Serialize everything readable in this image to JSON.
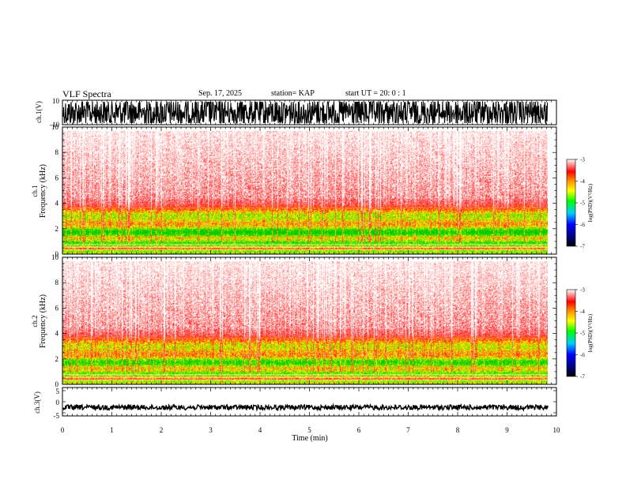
{
  "header": {
    "title": "VLF Spectra",
    "date": "Sep. 17, 2025",
    "station": "station= KAP",
    "start": "start UT =   20: 0  : 1"
  },
  "chart_data": [
    {
      "type": "line",
      "name": "ch1-waveform",
      "ylabel": "ch.1(V)",
      "ylim": [
        -10,
        10
      ],
      "yticks": [
        "10",
        "-10"
      ],
      "x_range_min": [
        0,
        9.83
      ]
    },
    {
      "type": "heatmap",
      "name": "ch1-spectrogram",
      "ylabel": "ch.1\nFrequency (kHz)",
      "ylim": [
        0,
        10
      ],
      "yticks": [
        "10",
        "8",
        "6",
        "4",
        "2",
        "0"
      ],
      "colorbar": {
        "label": "log(PSD)(V²/Hz)",
        "range": [
          -7,
          -3
        ],
        "ticks": [
          "-3",
          "-4",
          "-5",
          "-6",
          "-7"
        ]
      }
    },
    {
      "type": "heatmap",
      "name": "ch2-spectrogram",
      "ylabel": "ch.2\nFrequency (kHz)",
      "ylim": [
        0,
        10
      ],
      "yticks": [
        "10",
        "8",
        "6",
        "4",
        "2",
        "0"
      ],
      "colorbar": {
        "label": "log(PSD)(V²/Hz)",
        "range": [
          -7,
          -3
        ],
        "ticks": [
          "-3",
          "-4",
          "-5",
          "-6",
          "-7"
        ]
      }
    },
    {
      "type": "line",
      "name": "ch3-waveform",
      "ylabel": "ch.3(V)",
      "ylim": [
        -5,
        5
      ],
      "yticks": [
        "5",
        "0",
        "-5"
      ],
      "baseline_value": -2
    }
  ],
  "xaxis": {
    "label": "Time (min)",
    "range": [
      0,
      10
    ],
    "ticks": [
      "0",
      "1",
      "2",
      "3",
      "4",
      "5",
      "6",
      "7",
      "8",
      "9",
      "10"
    ]
  },
  "colors": {
    "gradient": [
      "#000000",
      "#000088",
      "#0000ff",
      "#00ccff",
      "#00ff00",
      "#ffff00",
      "#ff8800",
      "#ff0000",
      "#ffffff"
    ]
  }
}
